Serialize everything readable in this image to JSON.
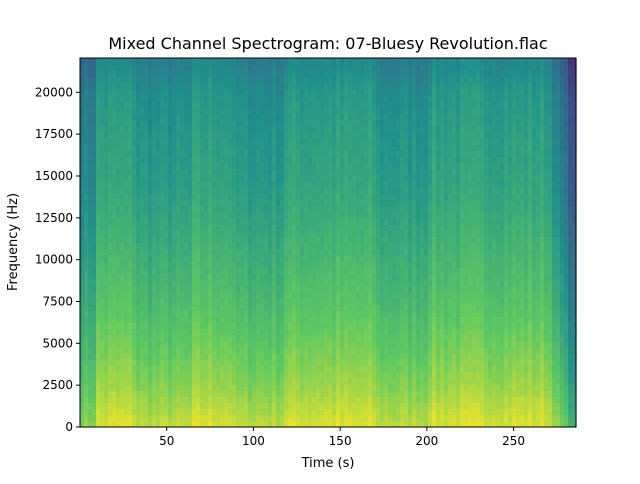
{
  "chart_data": {
    "type": "heatmap",
    "title": "Mixed Channel Spectrogram: 07-Bluesy Revolution.flac",
    "xlabel": "Time (s)",
    "ylabel": "Frequency (Hz)",
    "xlim": [
      0,
      286
    ],
    "ylim": [
      0,
      22050
    ],
    "x_ticks": [
      50,
      100,
      150,
      200,
      250
    ],
    "x_tick_labels": [
      "50",
      "100",
      "150",
      "200",
      "250"
    ],
    "y_ticks": [
      0,
      2500,
      5000,
      7500,
      10000,
      12500,
      15000,
      17500,
      20000
    ],
    "y_tick_labels": [
      "0",
      "2500",
      "5000",
      "7500",
      "10000",
      "12500",
      "15000",
      "17500",
      "20000"
    ],
    "colormap": "viridis",
    "grid": false,
    "legend": "none",
    "fade_out_start": 270,
    "quiet_intro_end": 10,
    "quiet_segments": [
      [
        33,
        64
      ],
      [
        88,
        118
      ],
      [
        170,
        200
      ]
    ],
    "intensity_by_frequency": [
      {
        "freq": 0,
        "level": 0.95
      },
      {
        "freq": 2500,
        "level": 0.85
      },
      {
        "freq": 5000,
        "level": 0.78
      },
      {
        "freq": 7500,
        "level": 0.72
      },
      {
        "freq": 10000,
        "level": 0.67
      },
      {
        "freq": 12500,
        "level": 0.62
      },
      {
        "freq": 15000,
        "level": 0.58
      },
      {
        "freq": 17500,
        "level": 0.56
      },
      {
        "freq": 20000,
        "level": 0.53
      },
      {
        "freq": 22050,
        "level": 0.46
      }
    ]
  }
}
